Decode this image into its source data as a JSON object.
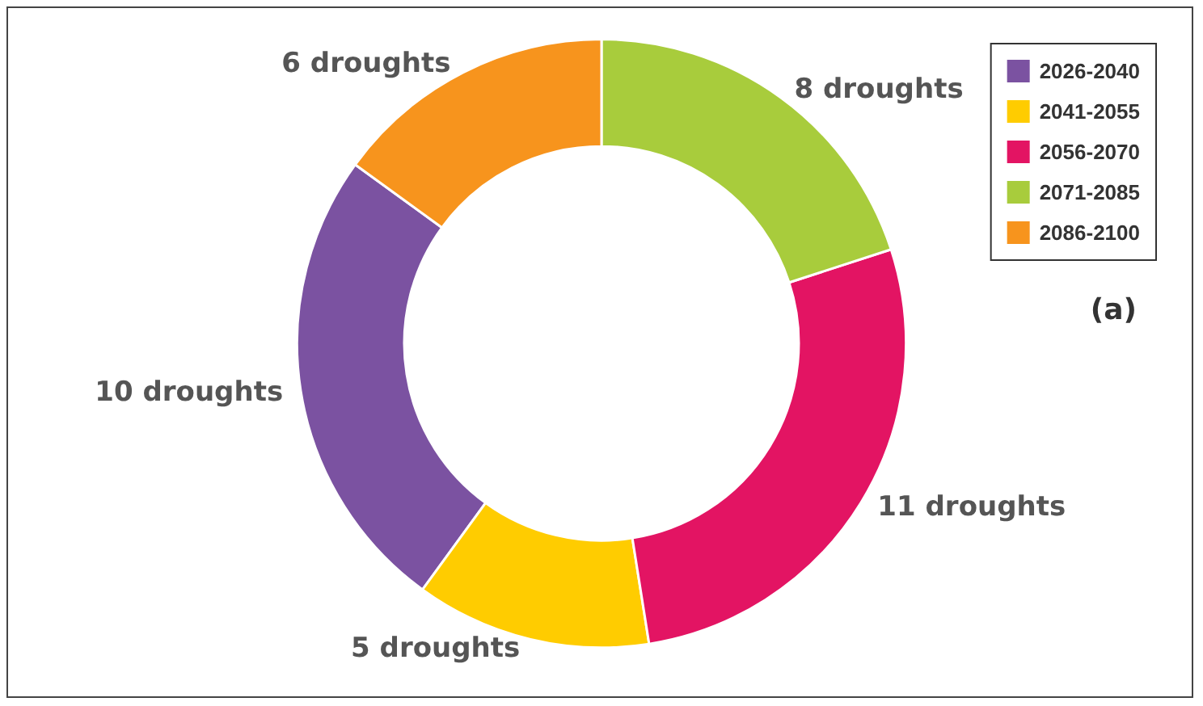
{
  "chart_data": {
    "type": "donut",
    "categories": [
      "2026-2040",
      "2041-2055",
      "2056-2070",
      "2071-2085",
      "2086-2100"
    ],
    "values": [
      10,
      5,
      11,
      8,
      6
    ],
    "colors": [
      "#7b52a1",
      "#ffcc00",
      "#e31463",
      "#a8cc3c",
      "#f7941d"
    ],
    "value_labels": [
      "10 droughts",
      "5 droughts",
      "11 droughts",
      "8 droughts",
      "6 droughts"
    ],
    "legend": "top right",
    "annotations": [
      "(a)"
    ]
  }
}
